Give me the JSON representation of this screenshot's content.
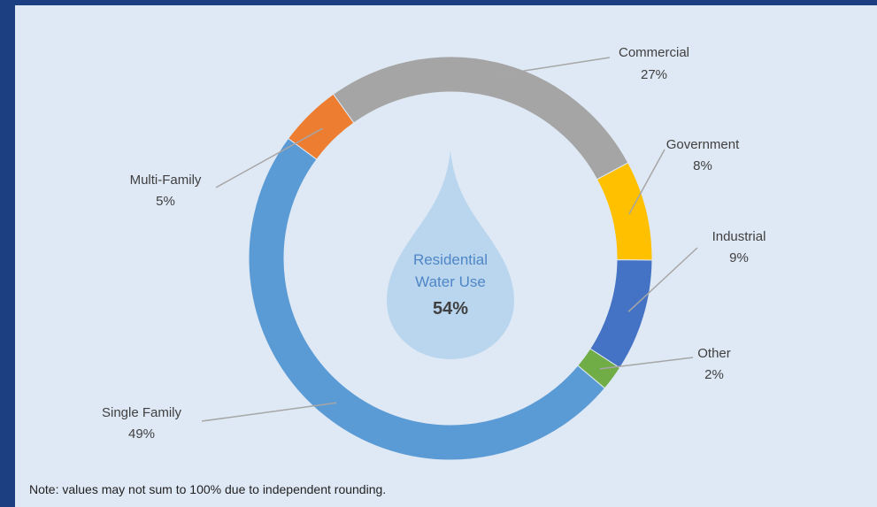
{
  "chart_data": {
    "type": "pie",
    "title": "",
    "series": [
      {
        "name": "Commercial",
        "value": 27,
        "label": "27%",
        "color": "#a5a5a5"
      },
      {
        "name": "Government",
        "value": 8,
        "label": "8%",
        "color": "#ffc000"
      },
      {
        "name": "Industrial",
        "value": 9,
        "label": "9%",
        "color": "#4472c4"
      },
      {
        "name": "Other",
        "value": 2,
        "label": "2%",
        "color": "#70ad47"
      },
      {
        "name": "Single Family",
        "value": 49,
        "label": "49%",
        "color": "#5b9bd5"
      },
      {
        "name": "Multi-Family",
        "value": 5,
        "label": "5%",
        "color": "#ed7d31"
      }
    ],
    "center": {
      "line1": "Residential",
      "line2": "Water Use",
      "value": "54%"
    }
  },
  "note": "Note: values may not sum to 100% due to independent rounding.",
  "colors": {
    "outer_background": "#1c3f82",
    "panel_background": "#dfe9f5",
    "drop": "#bad6ee",
    "leader_line": "#a6a6a6"
  }
}
